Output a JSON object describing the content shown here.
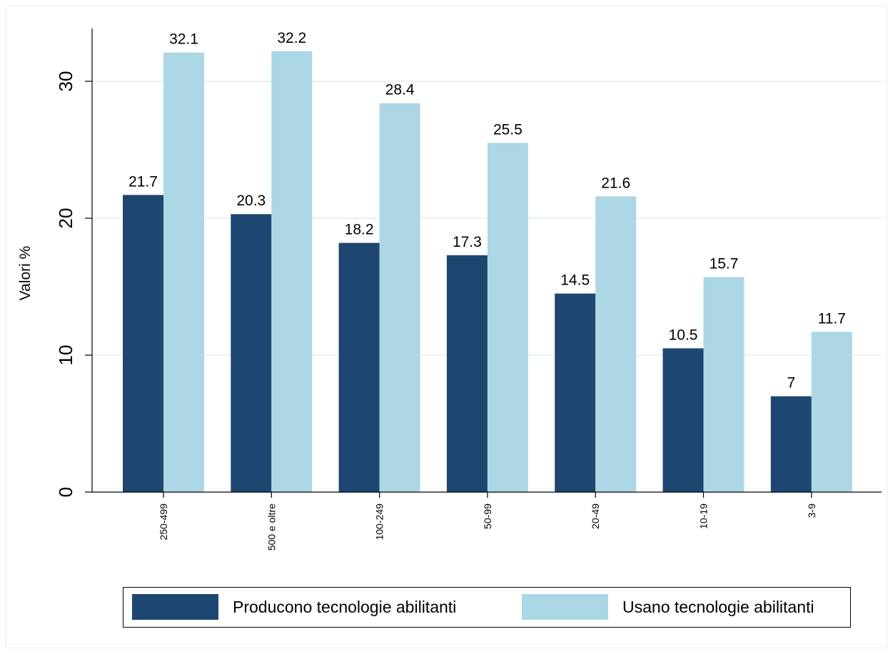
{
  "chart_data": {
    "type": "bar",
    "ylabel": "Valori %",
    "xlabel": "",
    "ylim": [
      0,
      34
    ],
    "yticks": [
      0,
      10,
      20,
      30
    ],
    "grid": true,
    "legend_position": "bottom",
    "categories": [
      "250-499",
      "500 e oltre",
      "100-249",
      "50-99",
      "20-49",
      "10-19",
      "3-9"
    ],
    "series": [
      {
        "name": "Producono tecnologie abilitanti",
        "color": "#1d4670",
        "values": [
          21.7,
          20.3,
          18.2,
          17.3,
          14.5,
          10.5,
          7
        ]
      },
      {
        "name": "Usano tecnologie abilitanti",
        "color": "#acd7e5",
        "values": [
          32.1,
          32.2,
          28.4,
          25.5,
          21.6,
          15.7,
          11.7
        ]
      }
    ]
  }
}
